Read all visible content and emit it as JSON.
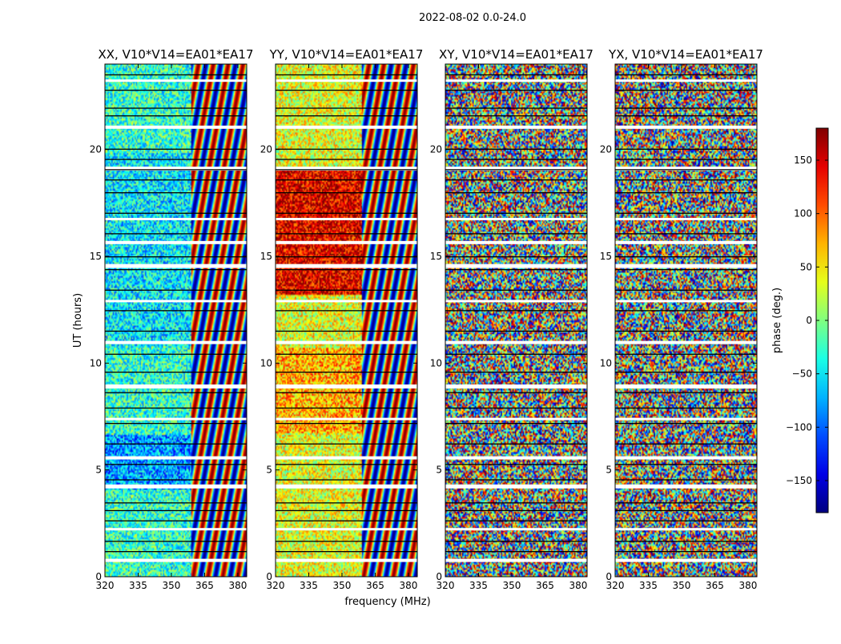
{
  "figure": {
    "suptitle": "2022-08-02 0.0-24.0",
    "xlabel": "frequency (MHz)",
    "ylabel": "UT (hours)",
    "colorbar_label": "phase (deg.)",
    "colorbar_ticks": [
      "150",
      "100",
      "50",
      "0",
      "−50",
      "−100",
      "−150"
    ],
    "colormap": "jet"
  },
  "chart_data": [
    {
      "type": "heatmap",
      "title": "XX, V10*V14=EA01*EA17",
      "x_ticks": [
        320,
        335,
        350,
        365,
        380
      ],
      "y_ticks": [
        0,
        5,
        10,
        15,
        20
      ],
      "xlim": [
        320,
        384
      ],
      "ylim": [
        0,
        24.0
      ],
      "value_range": [
        -180,
        180
      ],
      "style": "smooth"
    },
    {
      "type": "heatmap",
      "title": "YY, V10*V14=EA01*EA17",
      "x_ticks": [
        320,
        335,
        350,
        365,
        380
      ],
      "y_ticks": [
        0,
        5,
        10,
        15,
        20
      ],
      "xlim": [
        320,
        384
      ],
      "ylim": [
        0,
        24.0
      ],
      "value_range": [
        -180,
        180
      ],
      "style": "warm"
    },
    {
      "type": "heatmap",
      "title": "XY, V10*V14=EA01*EA17",
      "x_ticks": [
        320,
        335,
        350,
        365,
        380
      ],
      "y_ticks": [
        0,
        5,
        10,
        15,
        20
      ],
      "xlim": [
        320,
        384
      ],
      "ylim": [
        0,
        24.0
      ],
      "value_range": [
        -180,
        180
      ],
      "style": "noisy"
    },
    {
      "type": "heatmap",
      "title": "YX, V10*V14=EA01*EA17",
      "x_ticks": [
        320,
        335,
        350,
        365,
        380
      ],
      "y_ticks": [
        0,
        5,
        10,
        15,
        20
      ],
      "xlim": [
        320,
        384
      ],
      "ylim": [
        0,
        24.0
      ],
      "value_range": [
        -180,
        180
      ],
      "style": "noisy"
    }
  ]
}
